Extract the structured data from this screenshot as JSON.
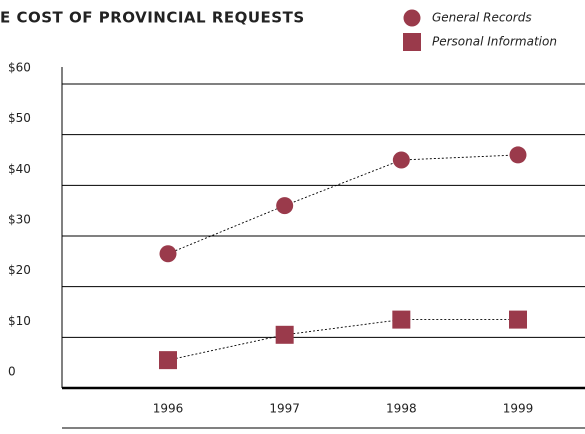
{
  "chart_data": {
    "type": "line",
    "title": "E COST OF PROVINCIAL REQUESTS",
    "categories": [
      "1996",
      "1997",
      "1998",
      "1999"
    ],
    "series": [
      {
        "name": "General Records",
        "color": "#9a3a4b",
        "marker": "circle",
        "values": [
          26.5,
          36,
          45,
          46
        ]
      },
      {
        "name": "Personal Information",
        "color": "#9a3a4b",
        "marker": "square",
        "values": [
          5.5,
          10.5,
          13.5,
          13.5
        ]
      }
    ],
    "ylim": [
      0,
      60
    ],
    "yticks": [
      0,
      {
        "value": 10,
        "label": "$10"
      },
      {
        "value": 20,
        "label": "$20"
      },
      {
        "value": 30,
        "label": "$30"
      },
      {
        "value": 40,
        "label": "$40"
      },
      {
        "value": 50,
        "label": "$50"
      },
      {
        "value": 60,
        "label": "$60"
      }
    ],
    "grid": true,
    "legend": "top-right"
  }
}
